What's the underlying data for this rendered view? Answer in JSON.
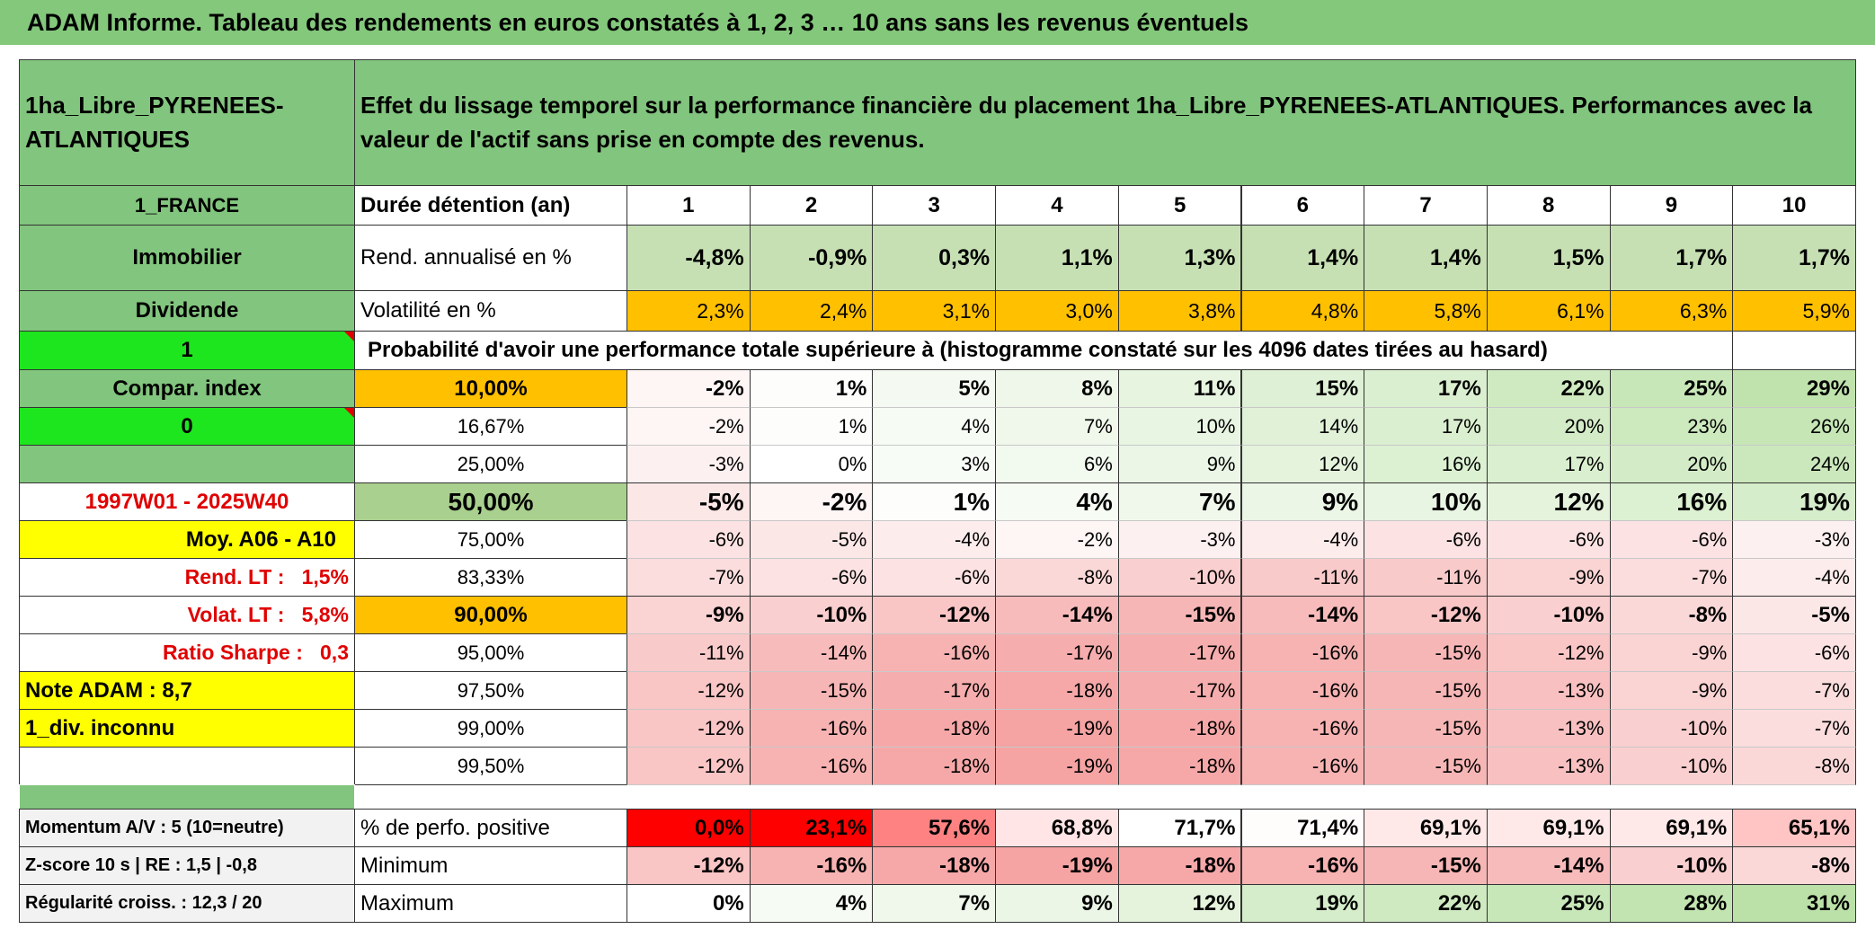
{
  "title": "ADAM Informe. Tableau des rendements en euros constatés à 1, 2, 3 … 10 ans sans les revenus éventuels",
  "table": {
    "header": {
      "left": "1ha_Libre_PYRENEES-ATLANTIQUES",
      "text": "Effet du lissage temporel sur la performance financière du placement 1ha_Libre_PYRENEES-ATLANTIQUES. Performances avec la valeur de l'actif sans prise en compte des revenus."
    },
    "rows": [
      {
        "label": "1_FRANCE",
        "name": "Durée détention (an)",
        "cells": [
          "1",
          "2",
          "3",
          "4",
          "5",
          "6",
          "7",
          "8",
          "9",
          "10"
        ]
      },
      {
        "label": "Immobilier",
        "name": "Rend. annualisé en %",
        "cells": [
          "-4,8%",
          "-0,9%",
          "0,3%",
          "1,1%",
          "1,3%",
          "1,4%",
          "1,4%",
          "1,5%",
          "1,7%",
          "1,7%"
        ]
      },
      {
        "label": "Dividende",
        "name": "Volatilité en %",
        "cells": [
          "2,3%",
          "2,4%",
          "3,1%",
          "3,0%",
          "3,8%",
          "4,8%",
          "5,8%",
          "6,1%",
          "6,3%",
          "5,9%"
        ]
      },
      {
        "label": "1",
        "name": "Probabilité d'avoir une performance totale supérieure à (histogramme constaté sur les 4096 dates tirées au hasard)"
      },
      {
        "label": "Compar. index",
        "name": "10,00%",
        "cells": [
          "-2%",
          "1%",
          "5%",
          "8%",
          "11%",
          "15%",
          "17%",
          "22%",
          "25%",
          "29%"
        ]
      },
      {
        "label": "0",
        "name": "16,67%",
        "cells": [
          "-2%",
          "1%",
          "4%",
          "7%",
          "10%",
          "14%",
          "17%",
          "20%",
          "23%",
          "26%"
        ]
      },
      {
        "name": "25,00%",
        "cells": [
          "-3%",
          "0%",
          "3%",
          "6%",
          "9%",
          "12%",
          "16%",
          "17%",
          "20%",
          "24%"
        ]
      },
      {
        "label": "1997W01 - 2025W40",
        "name": "50,00%",
        "cells": [
          "-5%",
          "-2%",
          "1%",
          "4%",
          "7%",
          "9%",
          "10%",
          "12%",
          "16%",
          "19%"
        ]
      },
      {
        "label": "Moy. A06 - A10",
        "name": "75,00%",
        "cells": [
          "-6%",
          "-5%",
          "-4%",
          "-2%",
          "-3%",
          "-4%",
          "-6%",
          "-6%",
          "-6%",
          "-3%"
        ]
      },
      {
        "label": "Rend. LT :   1,5%",
        "name": "83,33%",
        "cells": [
          "-7%",
          "-6%",
          "-6%",
          "-8%",
          "-10%",
          "-11%",
          "-11%",
          "-9%",
          "-7%",
          "-4%"
        ]
      },
      {
        "label": "Volat. LT :   5,8%",
        "name": "90,00%",
        "cells": [
          "-9%",
          "-10%",
          "-12%",
          "-14%",
          "-15%",
          "-14%",
          "-12%",
          "-10%",
          "-8%",
          "-5%"
        ]
      },
      {
        "label": "Ratio Sharpe :   0,3",
        "name": "95,00%",
        "cells": [
          "-11%",
          "-14%",
          "-16%",
          "-17%",
          "-17%",
          "-16%",
          "-15%",
          "-12%",
          "-9%",
          "-6%"
        ]
      },
      {
        "label": "Note ADAM : 8,7",
        "name": "97,50%",
        "cells": [
          "-12%",
          "-15%",
          "-17%",
          "-18%",
          "-17%",
          "-16%",
          "-15%",
          "-13%",
          "-9%",
          "-7%"
        ]
      },
      {
        "label": "1_div. inconnu",
        "name": "99,00%",
        "cells": [
          "-12%",
          "-16%",
          "-18%",
          "-19%",
          "-18%",
          "-16%",
          "-15%",
          "-13%",
          "-10%",
          "-7%"
        ]
      },
      {
        "name": "99,50%",
        "cells": [
          "-12%",
          "-16%",
          "-18%",
          "-19%",
          "-18%",
          "-16%",
          "-15%",
          "-13%",
          "-10%",
          "-8%"
        ]
      }
    ],
    "summary": [
      {
        "label": "Momentum A/V : 5 (10=neutre)",
        "name": "% de perfo. positive",
        "cells": [
          "0,0%",
          "23,1%",
          "57,6%",
          "68,8%",
          "71,7%",
          "71,4%",
          "69,1%",
          "69,1%",
          "69,1%",
          "65,1%"
        ]
      },
      {
        "label": "Z-score 10 s | RE : 1,5 | -0,8",
        "name": "Minimum",
        "cells": [
          "-12%",
          "-16%",
          "-18%",
          "-19%",
          "-18%",
          "-16%",
          "-15%",
          "-14%",
          "-10%",
          "-8%"
        ]
      },
      {
        "label": "Régularité croiss. : 12,3 / 20",
        "name": "Maximum",
        "cells": [
          "0%",
          "4%",
          "7%",
          "9%",
          "12%",
          "19%",
          "22%",
          "25%",
          "28%",
          "31%"
        ]
      }
    ]
  }
}
